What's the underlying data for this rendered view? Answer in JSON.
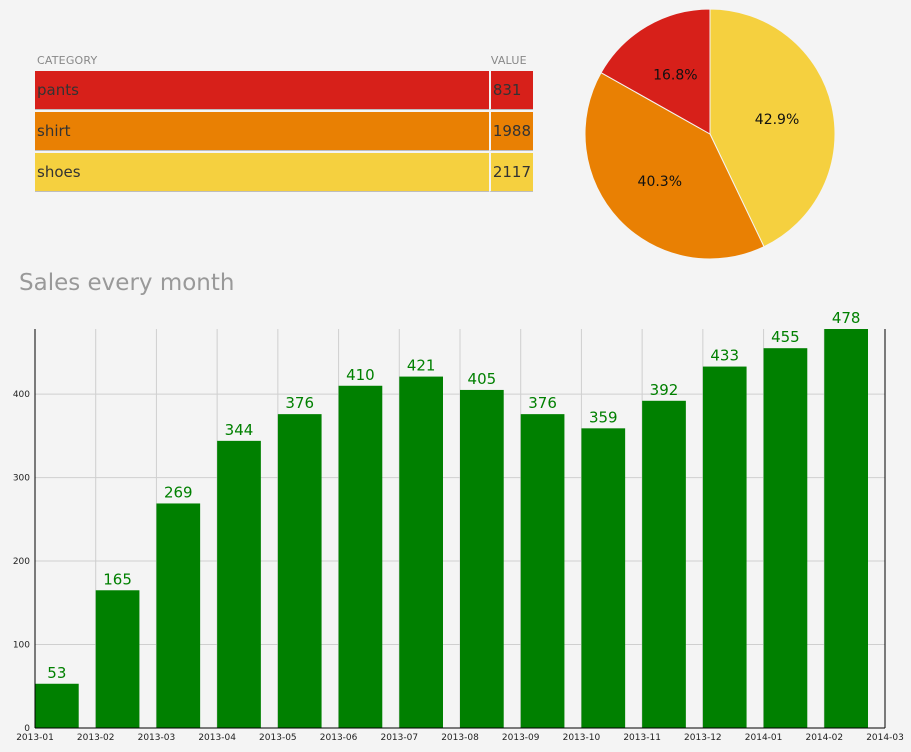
{
  "table": {
    "header_category": "CATEGORY",
    "header_value": "VALUE",
    "rows": [
      {
        "category": "pants",
        "value": "831",
        "color": "#d7201a"
      },
      {
        "category": "shirt",
        "value": "1988",
        "color": "#e98003"
      },
      {
        "category": "shoes",
        "value": "2117",
        "color": "#f5d03f"
      }
    ]
  },
  "chart_title": "Sales every month",
  "chart_data": [
    {
      "type": "pie",
      "categories": [
        "pants",
        "shirt",
        "shoes"
      ],
      "values": [
        831,
        1988,
        2117
      ],
      "labels": [
        "16.8%",
        "40.3%",
        "42.9%"
      ],
      "colors": [
        "#d7201a",
        "#e98003",
        "#f5d03f"
      ]
    },
    {
      "type": "bar",
      "title": "Sales every month",
      "categories": [
        "2013-01",
        "2013-02",
        "2013-03",
        "2013-04",
        "2013-05",
        "2013-06",
        "2013-07",
        "2013-08",
        "2013-09",
        "2013-10",
        "2013-11",
        "2013-12",
        "2014-01",
        "2014-02"
      ],
      "x_tick_labels": [
        "2013-01",
        "2013-02",
        "2013-03",
        "2013-04",
        "2013-05",
        "2013-06",
        "2013-07",
        "2013-08",
        "2013-09",
        "2013-10",
        "2013-11",
        "2013-12",
        "2014-01",
        "2014-02",
        "2014-03"
      ],
      "values": [
        53,
        165,
        269,
        344,
        376,
        410,
        421,
        405,
        376,
        359,
        392,
        433,
        455,
        478
      ],
      "y_ticks": [
        0,
        100,
        200,
        300,
        400
      ],
      "ylim": [
        0,
        478
      ],
      "grid": true,
      "bar_color": "#008000",
      "label_color": "#008000"
    }
  ]
}
